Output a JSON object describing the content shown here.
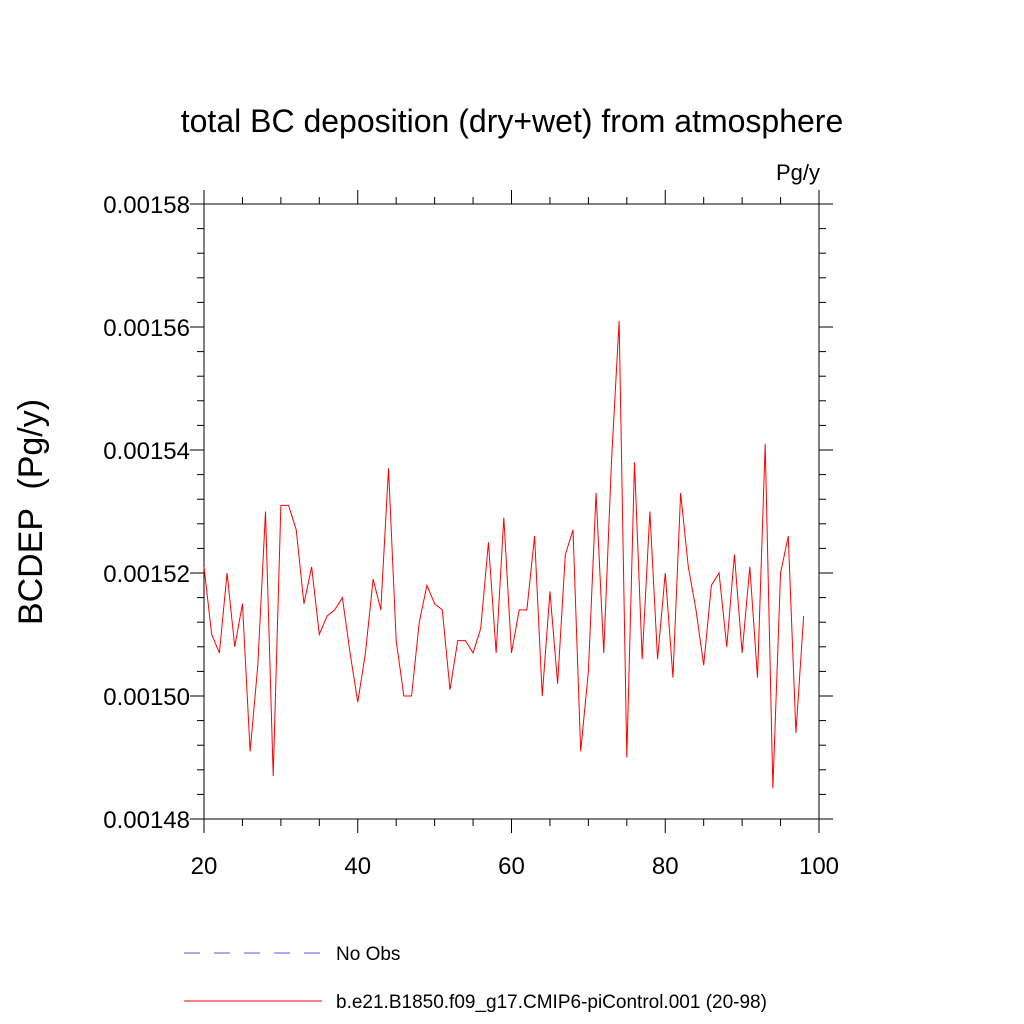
{
  "chart_data": {
    "type": "line",
    "title": "total BC deposition (dry+wet) from atmosphere",
    "units_label": "Pg/y",
    "ylabel": "BCDEP  (Pg/y)",
    "xlabel": "",
    "xlim": [
      20,
      100
    ],
    "ylim": [
      0.00148,
      0.00158
    ],
    "x_ticks": [
      20,
      40,
      60,
      80,
      100
    ],
    "x_tick_labels": [
      "20",
      "40",
      "60",
      "80",
      "100"
    ],
    "y_ticks": [
      0.00148,
      0.0015,
      0.00152,
      0.00154,
      0.00156,
      0.00158
    ],
    "y_tick_labels": [
      "0.00148",
      "0.00150",
      "0.00152",
      "0.00154",
      "0.00156",
      "0.00158"
    ],
    "grid": false,
    "legend_position": "bottom",
    "series": [
      {
        "name": "No Obs",
        "color": "#5a5adb",
        "dash": "dashed",
        "x": [],
        "y": []
      },
      {
        "name": "b.e21.B1850.f09_g17.CMIP6-piControl.001 (20-98)",
        "color": "#ff0000",
        "dash": "solid",
        "x": [
          20,
          21,
          22,
          23,
          24,
          25,
          26,
          27,
          28,
          29,
          30,
          31,
          32,
          33,
          34,
          35,
          36,
          37,
          38,
          39,
          40,
          41,
          42,
          43,
          44,
          45,
          46,
          47,
          48,
          49,
          50,
          51,
          52,
          53,
          54,
          55,
          56,
          57,
          58,
          59,
          60,
          61,
          62,
          63,
          64,
          65,
          66,
          67,
          68,
          69,
          70,
          71,
          72,
          73,
          74,
          75,
          76,
          77,
          78,
          79,
          80,
          81,
          82,
          83,
          84,
          85,
          86,
          87,
          88,
          89,
          90,
          91,
          92,
          93,
          94,
          95,
          96,
          97,
          98
        ],
        "y": [
          0.001521,
          0.00151,
          0.001507,
          0.00152,
          0.001508,
          0.001515,
          0.001491,
          0.001505,
          0.00153,
          0.001487,
          0.001531,
          0.001531,
          0.001527,
          0.001515,
          0.001521,
          0.00151,
          0.001513,
          0.001514,
          0.001516,
          0.001507,
          0.001499,
          0.001507,
          0.001519,
          0.001514,
          0.001537,
          0.001509,
          0.0015,
          0.0015,
          0.001512,
          0.001518,
          0.001515,
          0.001514,
          0.001501,
          0.001509,
          0.001509,
          0.001507,
          0.001511,
          0.001525,
          0.001507,
          0.001529,
          0.001507,
          0.001514,
          0.001514,
          0.001526,
          0.0015,
          0.001517,
          0.001502,
          0.001523,
          0.001527,
          0.001491,
          0.001504,
          0.001533,
          0.001507,
          0.001538,
          0.001561,
          0.00149,
          0.001538,
          0.001506,
          0.00153,
          0.001506,
          0.00152,
          0.001503,
          0.001533,
          0.001521,
          0.001514,
          0.001505,
          0.001518,
          0.00152,
          0.001508,
          0.001523,
          0.001507,
          0.001521,
          0.001503,
          0.001541,
          0.001485,
          0.00152,
          0.001526,
          0.001494,
          0.001513
        ]
      }
    ]
  }
}
